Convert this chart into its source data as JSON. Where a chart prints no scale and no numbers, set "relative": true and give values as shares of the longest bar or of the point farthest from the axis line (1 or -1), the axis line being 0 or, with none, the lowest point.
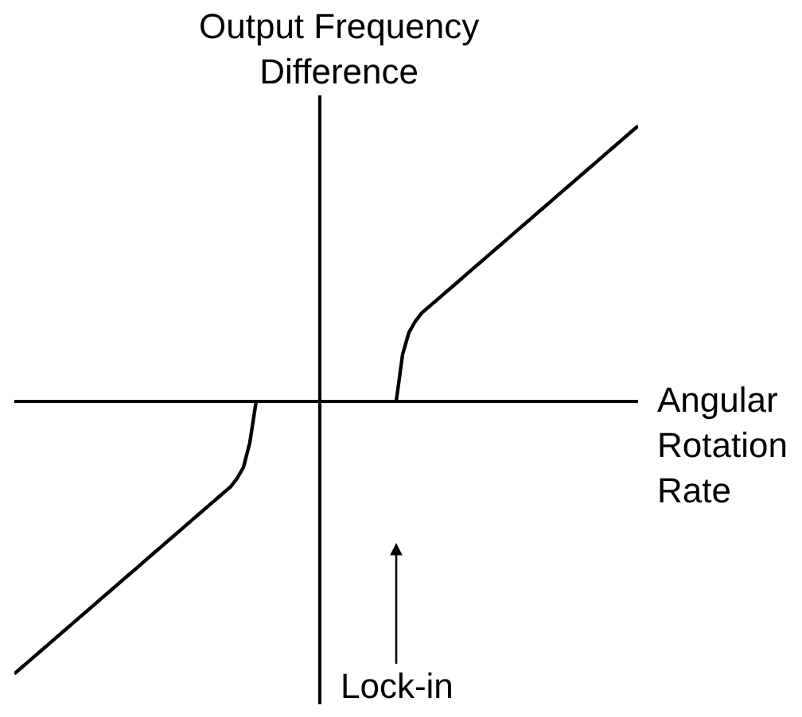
{
  "chart_data": {
    "type": "line",
    "relative": true,
    "xlabel": "Angular Rotation Rate",
    "ylabel": "Output Frequency Difference",
    "annotations": [
      "Lock-in"
    ],
    "categories": [
      null,
      null,
      null,
      null,
      null,
      null,
      null,
      null,
      null,
      null,
      null,
      null,
      null,
      null,
      null,
      null,
      null,
      null,
      null,
      null,
      null,
      null,
      null,
      null,
      null,
      null,
      null,
      null,
      null,
      null,
      null,
      null,
      null,
      null,
      null,
      null,
      null,
      null,
      null,
      null,
      null,
      null,
      null,
      null,
      null,
      null,
      null,
      null,
      null,
      null,
      null,
      null,
      null,
      null,
      null,
      null,
      null,
      null,
      null,
      null,
      null,
      null,
      null,
      null,
      null,
      null,
      null,
      null,
      null,
      null,
      null,
      null,
      null,
      null,
      null,
      null,
      null,
      null,
      null,
      null,
      null,
      null,
      null,
      null,
      null,
      null,
      null,
      null,
      null,
      null,
      null,
      null,
      null,
      null,
      null,
      null,
      null,
      null,
      null
    ],
    "series": [
      {
        "color": "#000000",
        "values": [
          -0.99,
          -0.97,
          -0.95,
          -0.93,
          -0.91,
          -0.89,
          -0.87,
          -0.85,
          -0.83,
          -0.81,
          -0.79,
          -0.77,
          -0.75,
          -0.73,
          -0.71,
          -0.69,
          -0.67,
          -0.65,
          -0.63,
          -0.61,
          -0.59,
          -0.57,
          -0.55,
          -0.53,
          -0.51,
          -0.49,
          -0.47,
          -0.45,
          -0.43,
          -0.41,
          -0.39,
          -0.37,
          -0.35,
          -0.33,
          -0.31,
          -0.28,
          -0.24,
          -0.15,
          0,
          null,
          null,
          null,
          null,
          null,
          null,
          null,
          null,
          null,
          null,
          null,
          null,
          null,
          null,
          null,
          null,
          null,
          null,
          null,
          null,
          null,
          0,
          0.17,
          0.25,
          0.29,
          0.32,
          0.34,
          0.36,
          0.38,
          0.4,
          0.42,
          0.44,
          0.46,
          0.48,
          0.5,
          0.52,
          0.54,
          0.56,
          0.58,
          0.6,
          0.62,
          0.64,
          0.66,
          0.68,
          0.7,
          0.72,
          0.74,
          0.76,
          0.78,
          0.8,
          0.82,
          0.84,
          0.86,
          0.88,
          0.9,
          0.92,
          0.94,
          0.96,
          0.98,
          1
        ]
      }
    ]
  }
}
